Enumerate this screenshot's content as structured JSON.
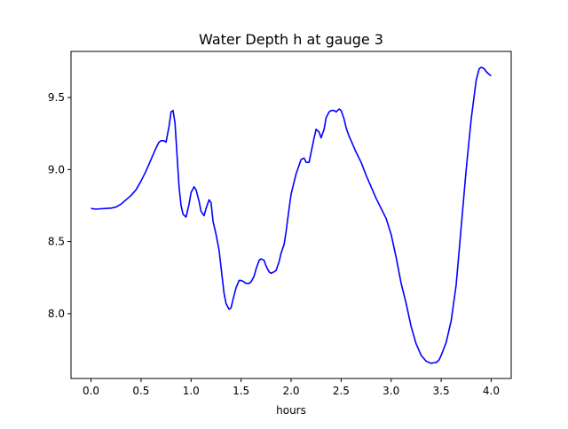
{
  "chart_data": {
    "type": "line",
    "title": "Water Depth h at gauge 3",
    "xlabel": "hours",
    "ylabel": "",
    "xlim": [
      -0.2,
      4.2
    ],
    "ylim": [
      7.55,
      9.82
    ],
    "x_ticks": [
      0.0,
      0.5,
      1.0,
      1.5,
      2.0,
      2.5,
      3.0,
      3.5,
      4.0
    ],
    "x_tick_labels": [
      "0.0",
      "0.5",
      "1.0",
      "1.5",
      "2.0",
      "2.5",
      "3.0",
      "3.5",
      "4.0"
    ],
    "y_ticks": [
      8.0,
      8.5,
      9.0,
      9.5
    ],
    "y_tick_labels": [
      "8.0",
      "8.5",
      "9.0",
      "9.5"
    ],
    "grid": false,
    "legend": "none",
    "series": [
      {
        "color": "#0000ff",
        "x": [
          0.0,
          0.05,
          0.1,
          0.15,
          0.2,
          0.25,
          0.3,
          0.35,
          0.4,
          0.45,
          0.5,
          0.55,
          0.6,
          0.65,
          0.68,
          0.7,
          0.73,
          0.75,
          0.78,
          0.8,
          0.82,
          0.84,
          0.86,
          0.88,
          0.9,
          0.92,
          0.95,
          0.98,
          1.0,
          1.03,
          1.05,
          1.08,
          1.1,
          1.13,
          1.15,
          1.18,
          1.2,
          1.22,
          1.25,
          1.28,
          1.3,
          1.33,
          1.35,
          1.38,
          1.4,
          1.42,
          1.45,
          1.48,
          1.5,
          1.53,
          1.55,
          1.58,
          1.6,
          1.63,
          1.65,
          1.68,
          1.7,
          1.73,
          1.75,
          1.78,
          1.8,
          1.83,
          1.85,
          1.88,
          1.9,
          1.93,
          1.95,
          1.98,
          2.0,
          2.05,
          2.1,
          2.13,
          2.15,
          2.18,
          2.2,
          2.23,
          2.25,
          2.28,
          2.3,
          2.33,
          2.35,
          2.38,
          2.4,
          2.43,
          2.45,
          2.48,
          2.5,
          2.53,
          2.55,
          2.58,
          2.6,
          2.65,
          2.7,
          2.75,
          2.8,
          2.85,
          2.9,
          2.95,
          3.0,
          3.05,
          3.1,
          3.15,
          3.2,
          3.25,
          3.3,
          3.35,
          3.4,
          3.43,
          3.45,
          3.48,
          3.5,
          3.55,
          3.6,
          3.65,
          3.7,
          3.75,
          3.8,
          3.85,
          3.88,
          3.9,
          3.93,
          3.95,
          3.98,
          4.0
        ],
        "y": [
          8.73,
          8.725,
          8.728,
          8.73,
          8.732,
          8.74,
          8.76,
          8.79,
          8.82,
          8.86,
          8.92,
          8.99,
          9.07,
          9.15,
          9.19,
          9.2,
          9.2,
          9.19,
          9.3,
          9.4,
          9.41,
          9.32,
          9.1,
          8.88,
          8.75,
          8.69,
          8.67,
          8.76,
          8.84,
          8.88,
          8.86,
          8.78,
          8.71,
          8.68,
          8.73,
          8.79,
          8.77,
          8.64,
          8.55,
          8.44,
          8.32,
          8.14,
          8.07,
          8.03,
          8.04,
          8.1,
          8.18,
          8.23,
          8.23,
          8.22,
          8.21,
          8.21,
          8.22,
          8.26,
          8.31,
          8.37,
          8.38,
          8.37,
          8.33,
          8.29,
          8.28,
          8.29,
          8.3,
          8.36,
          8.42,
          8.48,
          8.57,
          8.73,
          8.83,
          8.97,
          9.07,
          9.08,
          9.05,
          9.05,
          9.12,
          9.22,
          9.28,
          9.26,
          9.22,
          9.28,
          9.36,
          9.4,
          9.41,
          9.41,
          9.4,
          9.42,
          9.41,
          9.35,
          9.29,
          9.23,
          9.2,
          9.12,
          9.05,
          8.96,
          8.88,
          8.8,
          8.73,
          8.66,
          8.55,
          8.39,
          8.21,
          8.07,
          7.91,
          7.79,
          7.71,
          7.67,
          7.655,
          7.66,
          7.66,
          7.68,
          7.71,
          7.8,
          7.95,
          8.2,
          8.6,
          9.0,
          9.35,
          9.62,
          9.7,
          9.71,
          9.7,
          9.68,
          9.66,
          9.65
        ]
      }
    ]
  }
}
